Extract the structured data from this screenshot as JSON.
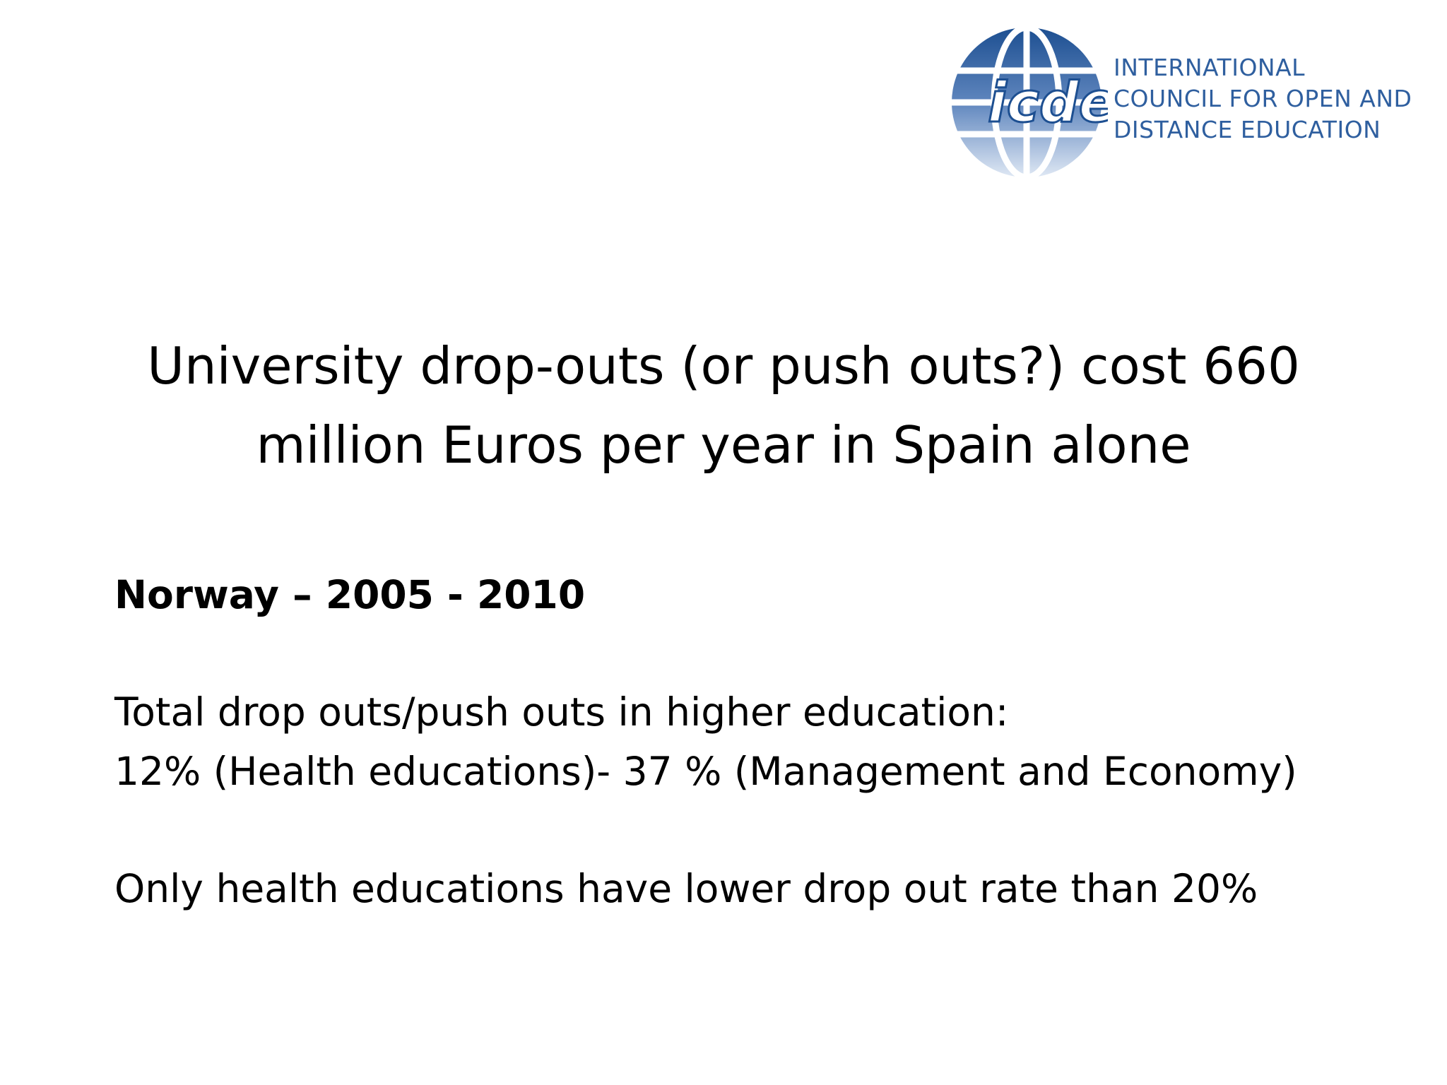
{
  "logo": {
    "mark": "icde",
    "lines": [
      "INTERNATIONAL",
      "COUNCIL FOR OPEN AND",
      "DISTANCE EDUCATION"
    ],
    "colors": {
      "globe_dark": "#1d4f91",
      "globe_light": "#dfe8f4",
      "text": "#2f5f9f"
    }
  },
  "title": "University drop-outs (or push outs?) cost 660 million Euros per year in Spain alone",
  "body": {
    "heading": "Norway – 2005 - 2010",
    "line1": "Total drop outs/push outs in higher education:",
    "line2": "12% (Health educations)- 37 % (Management and Economy)",
    "line3": "Only health educations have lower drop out rate than 20%"
  }
}
